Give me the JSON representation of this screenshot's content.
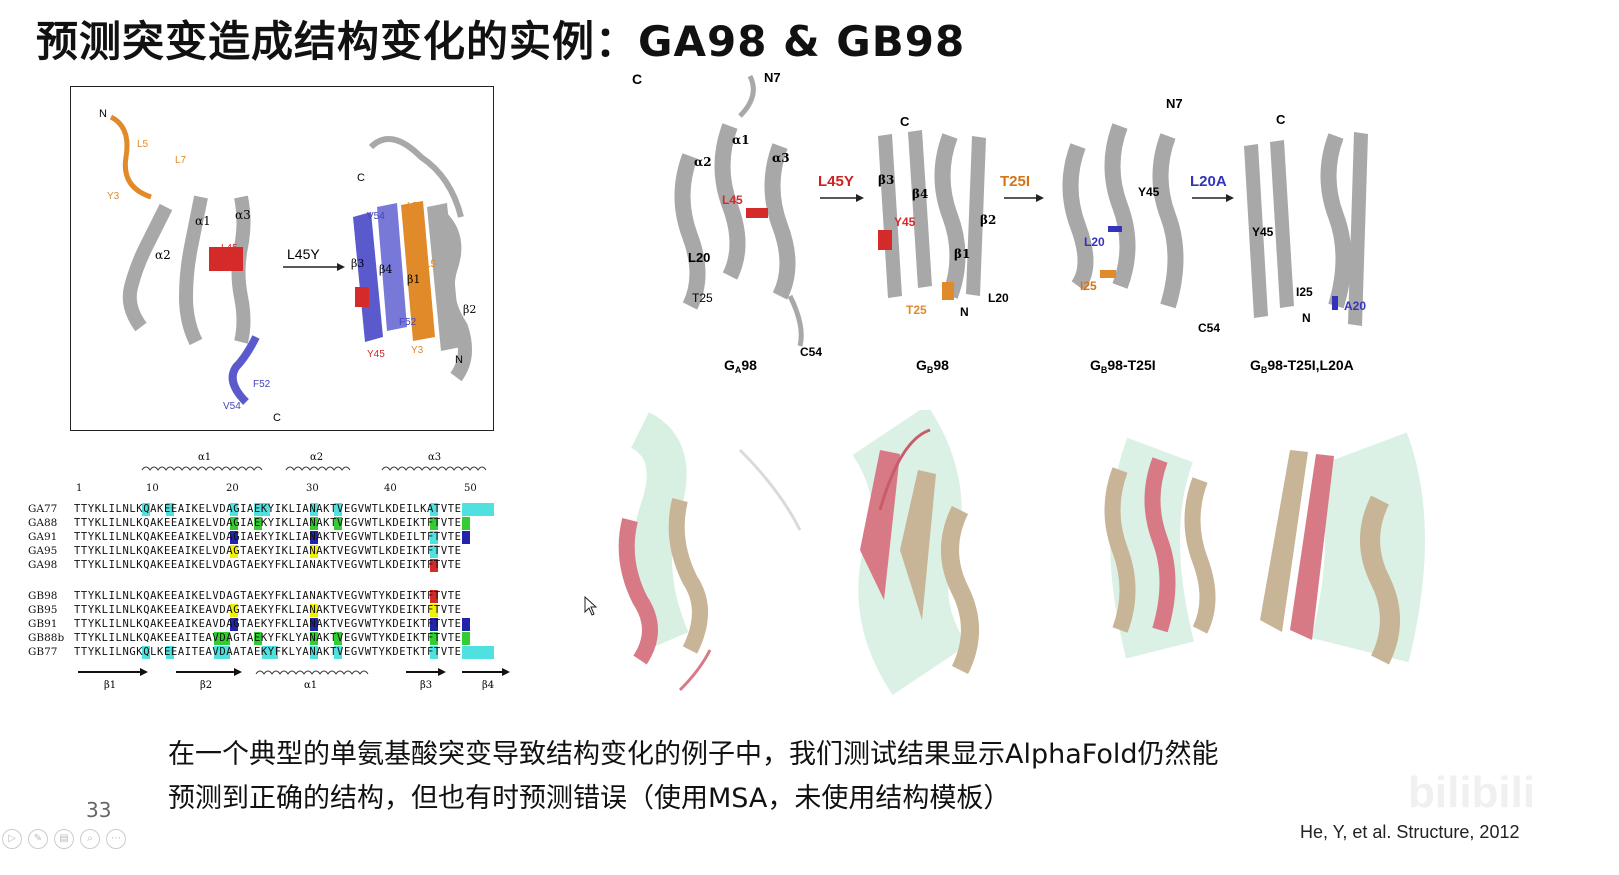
{
  "slide": {
    "title": "预测突变造成结构变化的实例：GA98 & GB98",
    "caption_line1": "在一个典型的单氨基酸突变导致结构变化的例子中，我们测试结果显示AlphaFold仍然能",
    "caption_line2": "预测到正确的结构，但也有时预测错误（使用MSA，未使用结构模板）",
    "page_number": "33",
    "citation": "He, Y, et al. Structure, 2012",
    "watermark": "bilibili"
  },
  "left_figure": {
    "arrow_label": "L45Y",
    "labels_ga": [
      "N",
      "L5",
      "L7",
      "Y3",
      "α1",
      "α3",
      "α2",
      "L45",
      "F52",
      "V54",
      "C"
    ],
    "labels_gb": [
      "C",
      "V54",
      "L7",
      "L5",
      "β3",
      "β4",
      "β1",
      "β2",
      "F52",
      "Y45",
      "Y3",
      "N"
    ]
  },
  "right_figure": {
    "structures": [
      {
        "name": "G",
        "sub": "A",
        "suffix": "98",
        "labels": [
          "C",
          "N7",
          "α1",
          "α2",
          "α3",
          "L45",
          "L20",
          "T25",
          "C54"
        ]
      },
      {
        "name": "G",
        "sub": "B",
        "suffix": "98",
        "labels": [
          "C",
          "β3",
          "β4",
          "Y45",
          "β2",
          "β1",
          "T25",
          "N",
          "L20"
        ]
      },
      {
        "name": "G",
        "sub": "B",
        "suffix": "98-T25I",
        "labels": [
          "N7",
          "Y45",
          "L20",
          "I25",
          "C54"
        ]
      },
      {
        "name": "G",
        "sub": "B",
        "suffix": "98-T25I,L20A",
        "labels": [
          "C",
          "Y45",
          "I25",
          "N",
          "A20"
        ]
      }
    ],
    "arrows": [
      "L45Y",
      "T25I",
      "L20A"
    ]
  },
  "alignment": {
    "ss_top": [
      "α1",
      "α2",
      "α3"
    ],
    "ss_bottom": [
      "β1",
      "β2",
      "α1",
      "β3",
      "β4"
    ],
    "positions": [
      "1",
      "10",
      "20",
      "30",
      "40",
      "50"
    ],
    "rows_a": [
      {
        "name": "GA77",
        "seq": "TTYKLILNLKQAKEEAIKELVDAGIAEKYIKLIANAKTVEGVWTLKDEILKATVTE"
      },
      {
        "name": "GA88",
        "seq": "TTYKLILNLKQAKEEAIKELVDAGIAEKYIKLIANAKTVEGVWTLKDEIKTFTVTE"
      },
      {
        "name": "GA91",
        "seq": "TTYKLILNLKQAKEEAIKELVDAGIAEKYIKLIANAKTVEGVWTLKDEILTFTVTE"
      },
      {
        "name": "GA95",
        "seq": "TTYKLILNLKQAKEEAIKELVDAGTAEKYIKLIANAKTVEGVWTLKDEIKTFTVTE"
      },
      {
        "name": "GA98",
        "seq": "TTYKLILNLKQAKEEAIKELVDAGTAEKYFKLIANAKTVEGVWTLKDEIKTFTVTE"
      }
    ],
    "rows_b": [
      {
        "name": "GB98",
        "seq": "TTYKLILNLKQAKEEAIKELVDAGTAEKYFKLIANAKTVEGVWTYKDEIKTFTVTE"
      },
      {
        "name": "GB95",
        "seq": "TTYKLILNLKQAKEEAIKEAVDAGTAEKYFKLIANAKTVEGVWTYKDEIKTFTVTE"
      },
      {
        "name": "GB91",
        "seq": "TTYKLILNLKQAKEEAIKEAVDAGTAEKYFKLIANAKTVEGVWTYKDEIKTFTVTE"
      },
      {
        "name": "GB88b",
        "seq": "TTYKLILNLKQAKEEAITEAVDAGTAEKYFKLYANAKTVEGVWTYKDEIKTFTVTE"
      },
      {
        "name": "GB77",
        "seq": "TTYKLILNGKQLKEEAITEAVDAATAEKYFKLYANAKTVEGVWTYKDETKTFTVTE"
      }
    ]
  },
  "colors": {
    "helix_gray": "#a8a8a8",
    "mutant_red": "#d42a2a",
    "mutant_orange": "#e08a2a",
    "mutant_blue": "#4444bb",
    "cyan": "#4fe0e0",
    "green": "#33cc33",
    "yellow": "#f0f000",
    "navy": "#2222aa",
    "pred_pink": "#d87a86",
    "pred_tan": "#c8b496",
    "pred_mint": "#bde6cf"
  }
}
